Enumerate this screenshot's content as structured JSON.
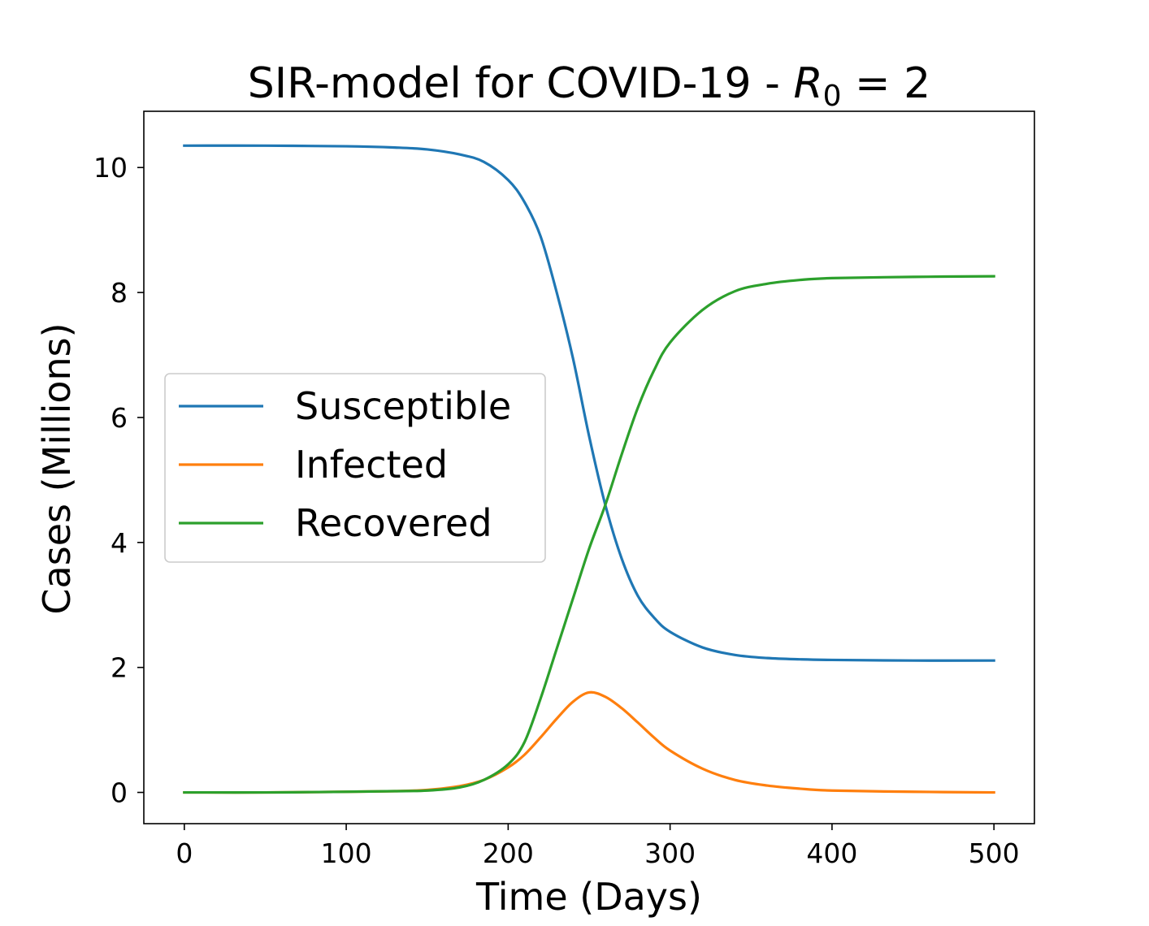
{
  "chart_data": {
    "type": "line",
    "title": {
      "main": "SIR-model for COVID-19 - ",
      "symbol": "R",
      "subscript": "0",
      "suffix": " = 2"
    },
    "xlabel": "Time (Days)",
    "ylabel": "Cases (Millions)",
    "xlim": [
      -25,
      525
    ],
    "ylim": [
      -0.5,
      10.9
    ],
    "xticks": [
      0,
      100,
      200,
      300,
      400,
      500
    ],
    "yticks": [
      0,
      2,
      4,
      6,
      8,
      10
    ],
    "grid": false,
    "legend_position": "center-left",
    "series": [
      {
        "name": "Susceptible",
        "color": "#1f77b4",
        "x": [
          0,
          50,
          100,
          130,
          150,
          170,
          185,
          200,
          210,
          220,
          230,
          240,
          250,
          260,
          270,
          280,
          290,
          300,
          320,
          340,
          360,
          380,
          400,
          450,
          500
        ],
        "y": [
          10.35,
          10.35,
          10.34,
          10.32,
          10.29,
          10.21,
          10.09,
          9.8,
          9.45,
          8.9,
          8.0,
          6.95,
          5.7,
          4.6,
          3.75,
          3.15,
          2.8,
          2.57,
          2.32,
          2.2,
          2.15,
          2.13,
          2.12,
          2.11,
          2.11
        ]
      },
      {
        "name": "Infected",
        "color": "#ff7f0e",
        "x": [
          0,
          50,
          100,
          130,
          150,
          170,
          185,
          200,
          210,
          220,
          230,
          240,
          250,
          260,
          270,
          280,
          290,
          300,
          320,
          340,
          360,
          380,
          400,
          450,
          500
        ],
        "y": [
          0.0,
          0.0,
          0.01,
          0.02,
          0.04,
          0.1,
          0.2,
          0.4,
          0.6,
          0.88,
          1.18,
          1.45,
          1.6,
          1.53,
          1.35,
          1.12,
          0.88,
          0.67,
          0.38,
          0.2,
          0.11,
          0.06,
          0.03,
          0.01,
          0.0
        ]
      },
      {
        "name": "Recovered",
        "color": "#2ca02c",
        "x": [
          0,
          50,
          100,
          130,
          150,
          170,
          185,
          200,
          210,
          220,
          230,
          240,
          250,
          260,
          270,
          280,
          290,
          300,
          320,
          340,
          360,
          380,
          400,
          450,
          500
        ],
        "y": [
          0.0,
          0.0,
          0.01,
          0.02,
          0.03,
          0.08,
          0.2,
          0.45,
          0.8,
          1.5,
          2.3,
          3.1,
          3.9,
          4.6,
          5.4,
          6.15,
          6.75,
          7.2,
          7.72,
          8.02,
          8.14,
          8.2,
          8.23,
          8.25,
          8.26
        ]
      }
    ]
  }
}
